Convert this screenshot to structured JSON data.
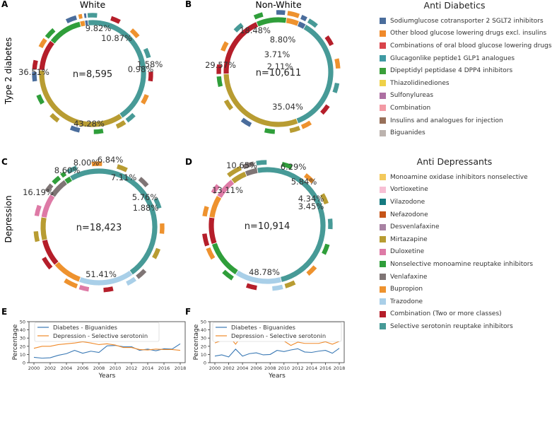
{
  "figure": {
    "row_labels": [
      "Type 2 diabetes",
      "Depression"
    ]
  },
  "chart_data": [
    {
      "id": "A",
      "type": "pie",
      "panel": "A",
      "title": "White",
      "center_label": "n=8,595",
      "slices": [
        {
          "name": "Biguanides",
          "percent": 43.28
        },
        {
          "name": "Sulfonylureas",
          "percent": 36.51
        },
        {
          "name": "Combination",
          "percent": 9.82
        },
        {
          "name": "Glucagonlike peptide1 GLP1 analogues",
          "percent": 10.87
        },
        {
          "name": "Other blood glucose lowering drugs excl. insulins",
          "percent": 1.58
        },
        {
          "name": "Thiazolidinediones",
          "percent": 0.98
        }
      ],
      "labels": [
        {
          "text": "43.28%",
          "slice": 0
        },
        {
          "text": "36.51%",
          "slice": 1
        },
        {
          "text": "9.82%",
          "slice": 2
        },
        {
          "text": "10.87%",
          "slice": 3
        },
        {
          "text": "1.58%",
          "slice": 4
        },
        {
          "text": "0.98%",
          "slice": 5
        }
      ]
    },
    {
      "id": "B",
      "type": "pie",
      "panel": "B",
      "title": "Non-White",
      "center_label": "n=10,611",
      "slices": [
        {
          "name": "Biguanides",
          "percent": 35.04
        },
        {
          "name": "Sulfonylureas",
          "percent": 29.57
        },
        {
          "name": "Combination",
          "percent": 18.48
        },
        {
          "name": "Glucagonlike peptide1 GLP1 analogues",
          "percent": 8.8
        },
        {
          "name": "Dipeptidyl peptidase 4 DPP4 inhibitors",
          "percent": 3.71
        },
        {
          "name": "Thiazolidinediones",
          "percent": 2.11
        }
      ],
      "labels": [
        {
          "text": "35.04%",
          "slice": 0
        },
        {
          "text": "29.57%",
          "slice": 1
        },
        {
          "text": "18.48%",
          "slice": 2
        },
        {
          "text": "8.80%",
          "slice": 3
        },
        {
          "text": "3.71%",
          "slice": 4
        },
        {
          "text": "2.11%",
          "slice": 5
        }
      ]
    },
    {
      "id": "C",
      "type": "pie",
      "panel": "C",
      "center_label": "n=18,423",
      "slices": [
        {
          "name": "Selective serotonin reuptake inhibitors",
          "percent": 51.41
        },
        {
          "name": "Trazodone",
          "percent": 16.19
        },
        {
          "name": "Bupropion",
          "percent": 8.6
        },
        {
          "name": "Combination (Two or more classes)",
          "percent": 8.0
        },
        {
          "name": "Mirtazapine",
          "percent": 6.84
        },
        {
          "name": "Duloxetine",
          "percent": 7.11
        },
        {
          "name": "Venlafaxine",
          "percent": 5.76
        },
        {
          "name": "Nonselective monoamine reuptake inhibitors",
          "percent": 1.88
        }
      ],
      "labels": [
        {
          "text": "51.41%",
          "slice": 0
        },
        {
          "text": "16.19%",
          "slice": 1
        },
        {
          "text": "8.60%",
          "slice": 2
        },
        {
          "text": "8.00%",
          "slice": 3
        },
        {
          "text": "6.84%",
          "slice": 4
        },
        {
          "text": "7.11%",
          "slice": 5
        },
        {
          "text": "5.76%",
          "slice": 6
        },
        {
          "text": "1.88%",
          "slice": 7
        }
      ]
    },
    {
      "id": "D",
      "type": "pie",
      "panel": "D",
      "center_label": "n=10,914",
      "slices": [
        {
          "name": "Selective serotonin reuptake inhibitors",
          "percent": 48.78
        },
        {
          "name": "Trazodone",
          "percent": 13.11
        },
        {
          "name": "Nonselective monoamine reuptake inhibitors",
          "percent": 10.65
        },
        {
          "name": "Combination (Two or more classes)",
          "percent": 7.5
        },
        {
          "name": "Bupropion",
          "percent": 6.29
        },
        {
          "name": "Duloxetine",
          "percent": 5.84
        },
        {
          "name": "Mirtazapine",
          "percent": 4.34
        },
        {
          "name": "Venlafaxine",
          "percent": 3.45
        }
      ],
      "labels": [
        {
          "text": "48.78%",
          "slice": 0
        },
        {
          "text": "13.11%",
          "slice": 1
        },
        {
          "text": "10.65%",
          "slice": 2
        },
        {
          "text": "6.29%",
          "slice": 4
        },
        {
          "text": "5.84%",
          "slice": 5
        },
        {
          "text": "4.34%",
          "slice": 6
        },
        {
          "text": "3.45%",
          "slice": 7
        }
      ]
    },
    {
      "id": "E",
      "type": "line",
      "panel": "E",
      "xlabel": "Years",
      "ylabel": "Percentage",
      "ylim": [
        0,
        50
      ],
      "xlim": [
        2000,
        2018
      ],
      "yticks": [
        0,
        10,
        20,
        30,
        40,
        50
      ],
      "xticks": [
        2000,
        2002,
        2004,
        2006,
        2008,
        2010,
        2012,
        2014,
        2016,
        2018
      ],
      "x": [
        2000,
        2001,
        2002,
        2003,
        2004,
        2005,
        2006,
        2007,
        2008,
        2009,
        2010,
        2011,
        2012,
        2013,
        2014,
        2015,
        2016,
        2017,
        2018
      ],
      "series": [
        {
          "name": "Diabetes - Biguanides",
          "color": "#3a79b5",
          "values": [
            6.5,
            5.5,
            6,
            9,
            11,
            15,
            11.5,
            14,
            12.5,
            20.5,
            21,
            19.5,
            19.5,
            15,
            16.5,
            14.5,
            17,
            16.5,
            23
          ]
        },
        {
          "name": "Depression - Selective serotonin",
          "color": "#f08a2a",
          "values": [
            17.5,
            20,
            20,
            22,
            23,
            24,
            25.5,
            24,
            22,
            23,
            21.5,
            18.5,
            18.5,
            16,
            15.5,
            16.5,
            16,
            16,
            15
          ]
        }
      ]
    },
    {
      "id": "F",
      "type": "line",
      "panel": "F",
      "xlabel": "Years",
      "ylabel": "Percentage",
      "ylim": [
        0,
        50
      ],
      "xlim": [
        2000,
        2018
      ],
      "yticks": [
        0,
        10,
        20,
        30,
        40,
        50
      ],
      "xticks": [
        2000,
        2002,
        2004,
        2006,
        2008,
        2010,
        2012,
        2014,
        2016,
        2018
      ],
      "x": [
        2000,
        2001,
        2002,
        2003,
        2004,
        2005,
        2006,
        2007,
        2008,
        2009,
        2010,
        2011,
        2012,
        2013,
        2014,
        2015,
        2016,
        2017,
        2018
      ],
      "series": [
        {
          "name": "Diabetes - Biguanides",
          "color": "#3a79b5",
          "values": [
            8,
            9.5,
            7,
            16.5,
            8,
            11,
            12,
            9.5,
            10,
            15,
            13.5,
            15.5,
            17,
            13,
            12.5,
            14,
            15,
            11.5,
            17.5
          ]
        },
        {
          "name": "Depression - Selective serotonin",
          "color": "#f08a2a",
          "values": [
            24,
            27,
            32.5,
            22.5,
            34,
            29.5,
            28,
            30.5,
            27.5,
            27.5,
            26.5,
            21,
            25,
            23.5,
            23.5,
            23.5,
            25.5,
            22.5,
            26
          ]
        }
      ]
    }
  ],
  "legends": {
    "anti_diabetics": {
      "title": "Anti Diabetics",
      "items": [
        {
          "label": "Sodiumglucose cotransporter 2 SGLT2 inhibitors",
          "color": "#4a6d9c"
        },
        {
          "label": "Other blood glucose lowering drugs excl. insulins",
          "color": "#f08a2a"
        },
        {
          "label": "Combinations of oral blood glucose lowering drugs",
          "color": "#d9434a"
        },
        {
          "label": "Glucagonlike peptide1 GLP1 analogues",
          "color": "#3f9aa3"
        },
        {
          "label": "Dipeptidyl peptidase 4 DPP4 inhibitors",
          "color": "#3a9f3a"
        },
        {
          "label": "Thiazolidinediones",
          "color": "#efd148"
        },
        {
          "label": "Sulfonylureas",
          "color": "#ad6fa2"
        },
        {
          "label": "Combination",
          "color": "#f39aa4"
        },
        {
          "label": "Insulins and analogues for injection",
          "color": "#98705a"
        },
        {
          "label": "Biguanides",
          "color": "#bcb3ae"
        }
      ]
    },
    "anti_depressants": {
      "title": "Anti Depressants",
      "items": [
        {
          "label": "Monoamine oxidase inhibitors nonselective",
          "color": "#f3c95c"
        },
        {
          "label": "Vortioxetine",
          "color": "#f7bfd4"
        },
        {
          "label": "Vilazodone",
          "color": "#157a80"
        },
        {
          "label": "Nefazodone",
          "color": "#c65418"
        },
        {
          "label": "Desvenlafaxine",
          "color": "#a882a3"
        },
        {
          "label": "Mirtazapine",
          "color": "#b89c32"
        },
        {
          "label": "Duloxetine",
          "color": "#de7aa6"
        },
        {
          "label": "Nonselective monoamine reuptake inhibitors",
          "color": "#2f9e3a"
        },
        {
          "label": "Venlafaxine",
          "color": "#7f7575"
        },
        {
          "label": "Bupropion",
          "color": "#ee922e"
        },
        {
          "label": "Trazodone",
          "color": "#a9cfe8"
        },
        {
          "label": "Combination (Two or more classes)",
          "color": "#b51e2a"
        },
        {
          "label": "Selective serotonin reuptake inhibitors",
          "color": "#479a97"
        }
      ]
    }
  },
  "colors": {
    "biguanides_ring": "#479a97",
    "sulfonylureas_ring": "#b89c32",
    "combination_ring": "#b51e2a",
    "glp1_ring": "#2f9e3a",
    "other_ring": "#ee922e",
    "tzd_ring": "#4a6d9c",
    "ssri": "#479a97",
    "trazodone": "#a9cfe8",
    "bupropion": "#ee922e",
    "combination_dep": "#b51e2a",
    "mirtazapine": "#b89c32",
    "duloxetine": "#de7aa6",
    "venlafaxine": "#7f7575",
    "nonselective": "#2f9e3a"
  }
}
